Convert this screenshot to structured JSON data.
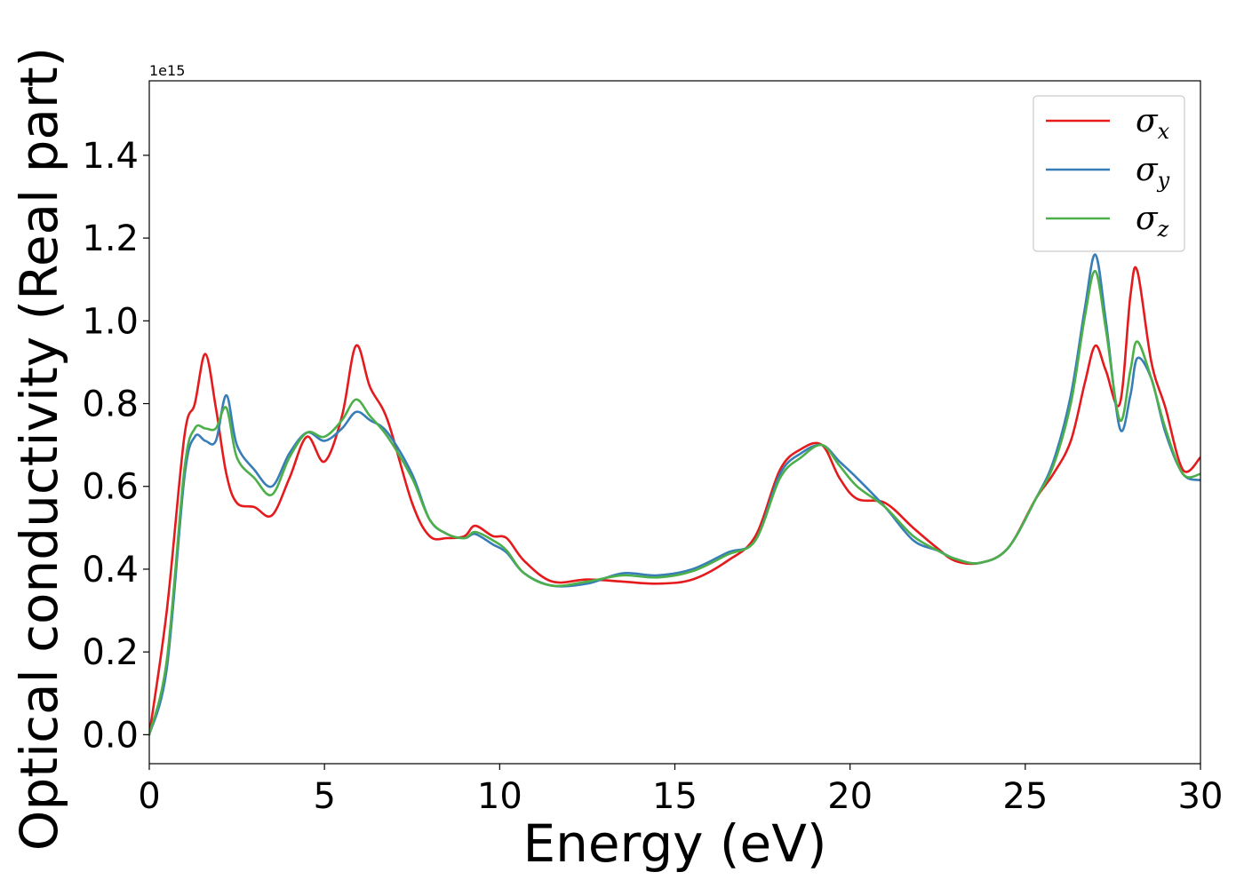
{
  "chart_data": {
    "type": "line",
    "title": "",
    "xlabel": "Energy (eV)",
    "ylabel": "Optical conductivity (Real part)",
    "y_offset_label": "1e15",
    "y_scale_factor": 1000000000000000.0,
    "xlim": [
      0,
      30
    ],
    "ylim": [
      -0.07,
      1.58
    ],
    "xticks": [
      0,
      5,
      10,
      15,
      20,
      25,
      30
    ],
    "xtick_labels": [
      "0",
      "5",
      "10",
      "15",
      "20",
      "25",
      "30"
    ],
    "yticks": [
      0.0,
      0.2,
      0.4,
      0.6,
      0.8,
      1.0,
      1.2,
      1.4
    ],
    "ytick_labels": [
      "0.0",
      "0.2",
      "0.4",
      "0.6",
      "0.8",
      "1.0",
      "1.2",
      "1.4"
    ],
    "grid": false,
    "legend_position": "top-right",
    "x": [
      0,
      0.5,
      1.0,
      1.3,
      1.6,
      1.9,
      2.2,
      2.5,
      3.0,
      3.5,
      4.0,
      4.5,
      5.0,
      5.5,
      5.9,
      6.3,
      6.8,
      7.5,
      8.0,
      8.5,
      9.0,
      9.3,
      9.8,
      10.2,
      10.7,
      11.5,
      12.5,
      13.5,
      14.5,
      15.5,
      16.5,
      17.3,
      18.0,
      18.6,
      19.2,
      19.7,
      20.2,
      21.0,
      21.8,
      22.5,
      23.0,
      23.7,
      24.5,
      25.3,
      25.8,
      26.3,
      26.7,
      27.0,
      27.3,
      27.7,
      28.0,
      28.2,
      28.6,
      29.0,
      29.5,
      30.0
    ],
    "series": [
      {
        "name": "σx",
        "label_base": "σ",
        "label_sub": "x",
        "color": "#e41a1c",
        "values": [
          0.0,
          0.3,
          0.72,
          0.8,
          0.92,
          0.79,
          0.63,
          0.56,
          0.55,
          0.53,
          0.62,
          0.72,
          0.66,
          0.77,
          0.94,
          0.84,
          0.76,
          0.56,
          0.48,
          0.475,
          0.48,
          0.505,
          0.48,
          0.475,
          0.42,
          0.37,
          0.375,
          0.37,
          0.365,
          0.375,
          0.42,
          0.48,
          0.64,
          0.69,
          0.7,
          0.62,
          0.57,
          0.56,
          0.5,
          0.45,
          0.42,
          0.415,
          0.45,
          0.57,
          0.63,
          0.71,
          0.85,
          0.94,
          0.88,
          0.8,
          1.06,
          1.12,
          0.9,
          0.79,
          0.64,
          0.67
        ]
      },
      {
        "name": "σy",
        "label_base": "σ",
        "label_sub": "y",
        "color": "#377eb8",
        "values": [
          0.0,
          0.16,
          0.62,
          0.72,
          0.71,
          0.71,
          0.82,
          0.7,
          0.64,
          0.6,
          0.68,
          0.73,
          0.71,
          0.74,
          0.78,
          0.76,
          0.73,
          0.63,
          0.52,
          0.485,
          0.475,
          0.485,
          0.46,
          0.44,
          0.39,
          0.36,
          0.365,
          0.39,
          0.385,
          0.4,
          0.44,
          0.47,
          0.63,
          0.68,
          0.7,
          0.66,
          0.62,
          0.55,
          0.47,
          0.445,
          0.425,
          0.415,
          0.45,
          0.57,
          0.66,
          0.82,
          1.03,
          1.16,
          1.0,
          0.74,
          0.82,
          0.91,
          0.86,
          0.73,
          0.63,
          0.615
        ]
      },
      {
        "name": "σz",
        "label_base": "σ",
        "label_sub": "z",
        "color": "#4daf4a",
        "values": [
          0.0,
          0.18,
          0.64,
          0.74,
          0.74,
          0.74,
          0.79,
          0.67,
          0.62,
          0.58,
          0.67,
          0.73,
          0.72,
          0.76,
          0.81,
          0.77,
          0.72,
          0.62,
          0.52,
          0.485,
          0.475,
          0.49,
          0.47,
          0.445,
          0.39,
          0.36,
          0.37,
          0.385,
          0.38,
          0.395,
          0.435,
          0.47,
          0.62,
          0.67,
          0.7,
          0.65,
          0.6,
          0.55,
          0.48,
          0.445,
          0.425,
          0.415,
          0.45,
          0.57,
          0.65,
          0.8,
          1.01,
          1.12,
          0.98,
          0.76,
          0.88,
          0.95,
          0.86,
          0.74,
          0.63,
          0.63
        ]
      }
    ]
  }
}
